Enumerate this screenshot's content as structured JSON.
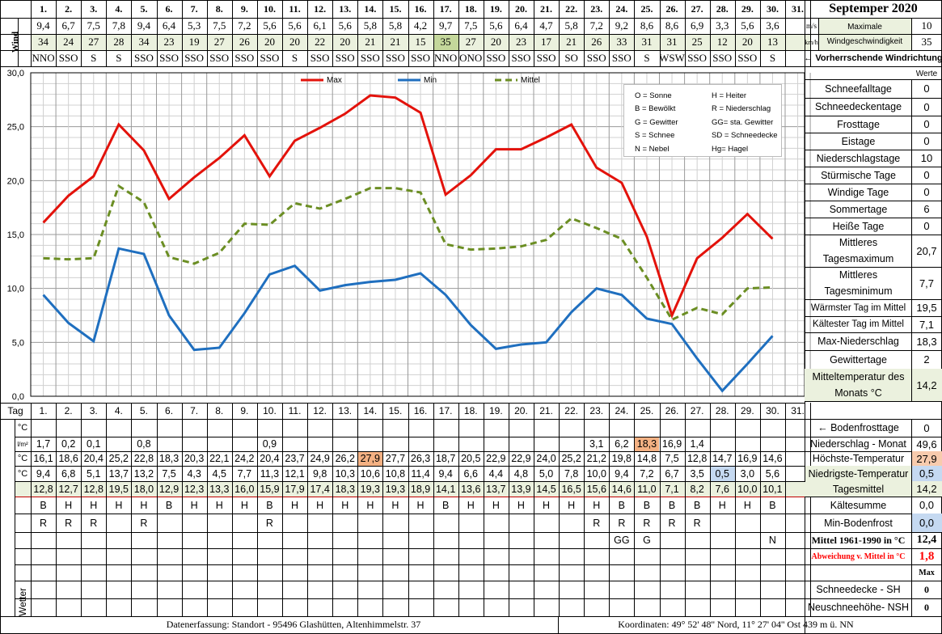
{
  "title": "Septemper 2020",
  "header_labels": {
    "wind": "Wind",
    "unit_ms": "m/s",
    "unit_kmh": "km/h",
    "max_wind_label_1": "Maximale",
    "max_wind_label_2": "Windgeschwindigkeit",
    "max_wind_ms": "10",
    "max_wind_kmh": "35",
    "prevailing_dir": "← Vorherrschende Windrichtung"
  },
  "days": [
    "1.",
    "2.",
    "3.",
    "4.",
    "5.",
    "6.",
    "7.",
    "8.",
    "9.",
    "10.",
    "11.",
    "12.",
    "13.",
    "14.",
    "15.",
    "16.",
    "17.",
    "18.",
    "19.",
    "20.",
    "21.",
    "22.",
    "23.",
    "24.",
    "25.",
    "26.",
    "27.",
    "28.",
    "29.",
    "30.",
    "31."
  ],
  "wind_ms": [
    "9,4",
    "6,7",
    "7,5",
    "7,8",
    "9,4",
    "6,4",
    "5,3",
    "7,5",
    "7,2",
    "5,6",
    "5,6",
    "6,1",
    "5,6",
    "5,8",
    "5,8",
    "4,2",
    "9,7",
    "7,5",
    "5,6",
    "6,4",
    "4,7",
    "5,8",
    "7,2",
    "9,2",
    "8,6",
    "8,6",
    "6,9",
    "3,3",
    "5,6",
    "3,6",
    ""
  ],
  "wind_kmh": [
    "34",
    "24",
    "27",
    "28",
    "34",
    "23",
    "19",
    "27",
    "26",
    "20",
    "20",
    "22",
    "20",
    "21",
    "21",
    "15",
    "35",
    "27",
    "20",
    "23",
    "17",
    "21",
    "26",
    "33",
    "31",
    "31",
    "25",
    "12",
    "20",
    "13",
    ""
  ],
  "wind_dir": [
    "NNO",
    "SSO",
    "S",
    "S",
    "SSO",
    "SSO",
    "SSO",
    "SSO",
    "SSO",
    "SSO",
    "S",
    "SSO",
    "SSO",
    "SSO",
    "SSO",
    "SSO",
    "NNO",
    "ONO",
    "SSO",
    "SSO",
    "SSO",
    "SO",
    "SSO",
    "SSO",
    "S",
    "WSW",
    "SSO",
    "SSO",
    "SSO",
    "S",
    ""
  ],
  "legend": {
    "max": "Max",
    "min": "Min",
    "mittel": "Mittel"
  },
  "colors": {
    "max": "#e3120b",
    "min": "#1f6fbf",
    "mittel": "#6b8e23",
    "green": "#ebf1de",
    "highlight_warm": "#f4b183",
    "highlight_cold": "#c5d9f1",
    "red_text": "#ff0000"
  },
  "key_box": [
    [
      "O = Sonne",
      "H = Heiter"
    ],
    [
      "B = Bewölkt",
      "R = Niederschlag"
    ],
    [
      "G = Gewitter",
      "GG= sta. Gewitter"
    ],
    [
      "S = Schnee",
      "SD = Schneedecke"
    ],
    [
      "N = Nebel",
      "Hg= Hagel"
    ]
  ],
  "chart_data": {
    "type": "line",
    "x": [
      1,
      2,
      3,
      4,
      5,
      6,
      7,
      8,
      9,
      10,
      11,
      12,
      13,
      14,
      15,
      16,
      17,
      18,
      19,
      20,
      21,
      22,
      23,
      24,
      25,
      26,
      27,
      28,
      29,
      30
    ],
    "ylim": [
      0,
      30
    ],
    "yticks": [
      "0,0",
      "5,0",
      "10,0",
      "15,0",
      "20,0",
      "25,0",
      "30,0"
    ],
    "series": [
      {
        "name": "Max",
        "values": [
          16.1,
          18.6,
          20.4,
          25.2,
          22.8,
          18.3,
          20.3,
          22.1,
          24.2,
          20.4,
          23.7,
          24.9,
          26.2,
          27.9,
          27.7,
          26.3,
          18.7,
          20.5,
          22.9,
          22.9,
          24.0,
          25.2,
          21.2,
          19.8,
          14.8,
          7.5,
          12.8,
          14.7,
          16.9,
          14.6
        ]
      },
      {
        "name": "Min",
        "values": [
          9.4,
          6.8,
          5.1,
          13.7,
          13.2,
          7.5,
          4.3,
          4.5,
          7.7,
          11.3,
          12.1,
          9.8,
          10.3,
          10.6,
          10.8,
          11.4,
          9.4,
          6.6,
          4.4,
          4.8,
          5.0,
          7.8,
          10.0,
          9.4,
          7.2,
          6.7,
          3.5,
          0.5,
          3.0,
          5.6
        ]
      },
      {
        "name": "Mittel",
        "values": [
          12.8,
          12.7,
          12.8,
          19.5,
          18.0,
          12.9,
          12.3,
          13.3,
          16.0,
          15.9,
          17.9,
          17.4,
          18.3,
          19.3,
          19.3,
          18.9,
          14.1,
          13.6,
          13.7,
          13.9,
          14.5,
          16.5,
          15.6,
          14.6,
          11.0,
          7.1,
          8.2,
          7.6,
          10.0,
          10.1
        ]
      }
    ],
    "grid": true,
    "legend_position": "top"
  },
  "table": {
    "tag_label": "Tag",
    "row_labels": [
      "°C",
      "l/m²",
      "°C",
      "°C",
      "°C"
    ],
    "boden": [
      "",
      "",
      "",
      "",
      "",
      "",
      "",
      "",
      "",
      "",
      "",
      "",
      "",
      "",
      "",
      "",
      "",
      "",
      "",
      "",
      "",
      "",
      "",
      "",
      "",
      "",
      "",
      "",
      "",
      "",
      ""
    ],
    "niederschlag": [
      "1,7",
      "0,2",
      "0,1",
      "",
      "0,8",
      "",
      "",
      "",
      "",
      "0,9",
      "",
      "",
      "",
      "",
      "",
      "",
      "",
      "",
      "",
      "",
      "",
      "",
      "3,1",
      "6,2",
      "18,3",
      "16,9",
      "1,4",
      "",
      "",
      "",
      ""
    ],
    "max": [
      "16,1",
      "18,6",
      "20,4",
      "25,2",
      "22,8",
      "18,3",
      "20,3",
      "22,1",
      "24,2",
      "20,4",
      "23,7",
      "24,9",
      "26,2",
      "27,9",
      "27,7",
      "26,3",
      "18,7",
      "20,5",
      "22,9",
      "22,9",
      "24,0",
      "25,2",
      "21,2",
      "19,8",
      "14,8",
      "7,5",
      "12,8",
      "14,7",
      "16,9",
      "14,6",
      ""
    ],
    "min": [
      "9,4",
      "6,8",
      "5,1",
      "13,7",
      "13,2",
      "7,5",
      "4,3",
      "4,5",
      "7,7",
      "11,3",
      "12,1",
      "9,8",
      "10,3",
      "10,6",
      "10,8",
      "11,4",
      "9,4",
      "6,6",
      "4,4",
      "4,8",
      "5,0",
      "7,8",
      "10,0",
      "9,4",
      "7,2",
      "6,7",
      "3,5",
      "0,5",
      "3,0",
      "5,6",
      ""
    ],
    "mittel": [
      "12,8",
      "12,7",
      "12,8",
      "19,5",
      "18,0",
      "12,9",
      "12,3",
      "13,3",
      "16,0",
      "15,9",
      "17,9",
      "17,4",
      "18,3",
      "19,3",
      "19,3",
      "18,9",
      "14,1",
      "13,6",
      "13,7",
      "13,9",
      "14,5",
      "16,5",
      "15,6",
      "14,6",
      "11,0",
      "7,1",
      "8,2",
      "7,6",
      "10,0",
      "10,1",
      ""
    ],
    "wetter_label": "Wetter",
    "wetter1": [
      "B",
      "H",
      "H",
      "H",
      "H",
      "B",
      "H",
      "H",
      "H",
      "B",
      "H",
      "H",
      "H",
      "H",
      "H",
      "H",
      "B",
      "H",
      "H",
      "H",
      "H",
      "H",
      "H",
      "B",
      "B",
      "B",
      "B",
      "H",
      "H",
      "B",
      ""
    ],
    "wetter2": [
      "R",
      "R",
      "R",
      "",
      "R",
      "",
      "",
      "",
      "",
      "R",
      "",
      "",
      "",
      "",
      "",
      "",
      "",
      "",
      "",
      "",
      "",
      "",
      "R",
      "R",
      "R",
      "R",
      "R",
      "",
      "",
      "",
      ""
    ],
    "wetter3": [
      "",
      "",
      "",
      "",
      "",
      "",
      "",
      "",
      "",
      "",
      "",
      "",
      "",
      "",
      "",
      "",
      "",
      "",
      "",
      "",
      "",
      "",
      "",
      "GG",
      "G",
      "",
      "",
      "",
      "",
      "N",
      ""
    ]
  },
  "stats": [
    {
      "label": "Schneefalltage",
      "value": "0"
    },
    {
      "label": "Schneedeckentage",
      "value": "0"
    },
    {
      "label": "Frosttage",
      "value": "0"
    },
    {
      "label": "Eistage",
      "value": "0"
    },
    {
      "label": "Niederschlagstage",
      "value": "10"
    },
    {
      "label": "Stürmische Tage",
      "value": "0"
    },
    {
      "label": "Windige Tage",
      "value": "0"
    },
    {
      "label": "Sommertage",
      "value": "6"
    },
    {
      "label": "Heiße Tage",
      "value": "0"
    },
    {
      "label": "Mittleres Tagesmaximum",
      "value": "20,7"
    },
    {
      "label": "Mittleres Tagesminimum",
      "value": "7,7"
    },
    {
      "label": "Wärmster Tag im Mittel",
      "value": "19,5"
    },
    {
      "label": "Kältester Tag im Mittel",
      "value": "7,1"
    },
    {
      "label": "Max-Niederschlag",
      "value": "18,3"
    },
    {
      "label": "Gewittertage",
      "value": "2"
    },
    {
      "label": "Mitteltemperatur des Monats °C",
      "value": "14,2"
    }
  ],
  "werte_label": "Werte",
  "summary": [
    {
      "label": "← Bodenfrosttage",
      "value": "0"
    },
    {
      "label": "Niederschlag - Monat",
      "value": "49,6"
    },
    {
      "label": "Höchste-Temperatur",
      "value": "27,9"
    },
    {
      "label": "Niedrigste-Temperatur",
      "value": "0,5"
    },
    {
      "label": "Tagesmittel",
      "value": "14,2"
    },
    {
      "label": "Kältesumme",
      "value": "0,0"
    },
    {
      "label": "Min-Bodenfrost",
      "value": "0,0"
    },
    {
      "label": "Mittel 1961-1990 in °C",
      "value": "12,4"
    },
    {
      "label": "Abweichung v. Mittel in °C",
      "value": "1,8"
    }
  ],
  "max_label": "Max",
  "snow": [
    {
      "label": "Schneedecke -  SH",
      "value": "0"
    },
    {
      "label": "Neuschneehöhe- NSH",
      "value": "0"
    }
  ],
  "footer": {
    "left": "Datenerfassung:  Standort -  95496  Glashütten, Altenhimmelstr. 37",
    "right": "Koordinaten:  49° 52' 48'' Nord,   11° 27' 04'' Ost   439 m ü. NN"
  }
}
